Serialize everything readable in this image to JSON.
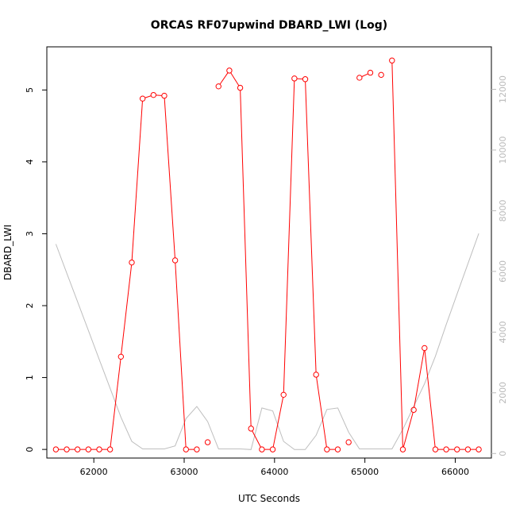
{
  "chart_data": {
    "type": "line",
    "title": "ORCAS RF07upwind DBARD_LWI (Log)",
    "xlabel": "UTC Seconds",
    "ylabel": "DBARD_LWI",
    "xlim": [
      61480,
      66400
    ],
    "ylim": [
      -0.12,
      5.6
    ],
    "y2lim": [
      -150,
      13400
    ],
    "x_ticks": [
      62000,
      63000,
      64000,
      65000,
      66000
    ],
    "y_ticks": [
      0,
      1,
      2,
      3,
      4,
      5
    ],
    "y2_ticks": [
      0,
      2000,
      4000,
      6000,
      8000,
      10000,
      12000
    ],
    "colors": {
      "series": "#ff0000",
      "secondary": "#bebebe",
      "axis": "#000000",
      "secondary_axis": "#b9b9b9"
    },
    "series": [
      {
        "x": [
          61580,
          61700,
          61820,
          61940,
          62060,
          62180,
          62300,
          62420,
          62540,
          62660,
          62780,
          62900,
          63020,
          63140,
          63260,
          63380,
          63500,
          63620,
          63740,
          63860,
          63980,
          64100,
          64220,
          64340,
          64460,
          64580,
          64700,
          64820,
          64940,
          65060,
          65180,
          65300,
          65420,
          65540,
          65660,
          65780,
          65900,
          66020,
          66140,
          66260
        ],
        "values": [
          0,
          0,
          0,
          0,
          0,
          0,
          1.29,
          2.6,
          4.88,
          4.93,
          4.92,
          2.63,
          0,
          0,
          0.1,
          5.05,
          5.27,
          5.03,
          0.29,
          0,
          0,
          0.76,
          5.16,
          5.15,
          1.04,
          0,
          0,
          0.1,
          5.17,
          5.24,
          5.21,
          5.41,
          0,
          0.55,
          1.41,
          0,
          0,
          0,
          0,
          0
        ],
        "connected": [
          true,
          true,
          true,
          true,
          true,
          true,
          true,
          true,
          true,
          true,
          true,
          true,
          true,
          false,
          false,
          true,
          true,
          true,
          true,
          true,
          true,
          true,
          true,
          true,
          true,
          true,
          false,
          false,
          true,
          false,
          false,
          true,
          true,
          true,
          true,
          true,
          true,
          true,
          true,
          true
        ]
      },
      {
        "axis": "right",
        "x": [
          61580,
          61700,
          61820,
          61940,
          62060,
          62180,
          62300,
          62420,
          62540,
          62660,
          62780,
          62900,
          63020,
          63140,
          63260,
          63380,
          63500,
          63620,
          63740,
          63860,
          63980,
          64100,
          64220,
          64340,
          64460,
          64580,
          64700,
          64820,
          64940,
          65060,
          65180,
          65300,
          65420,
          65540,
          65660,
          65780,
          65900,
          66020,
          66140,
          66260
        ],
        "values": [
          6900,
          5950,
          5000,
          4050,
          3100,
          2150,
          1200,
          400,
          150,
          150,
          150,
          250,
          1150,
          1550,
          1050,
          150,
          150,
          150,
          130,
          1500,
          1400,
          400,
          130,
          130,
          600,
          1450,
          1500,
          700,
          150,
          150,
          150,
          150,
          800,
          1550,
          2300,
          3200,
          4250,
          5250,
          6250,
          7250
        ]
      }
    ]
  }
}
